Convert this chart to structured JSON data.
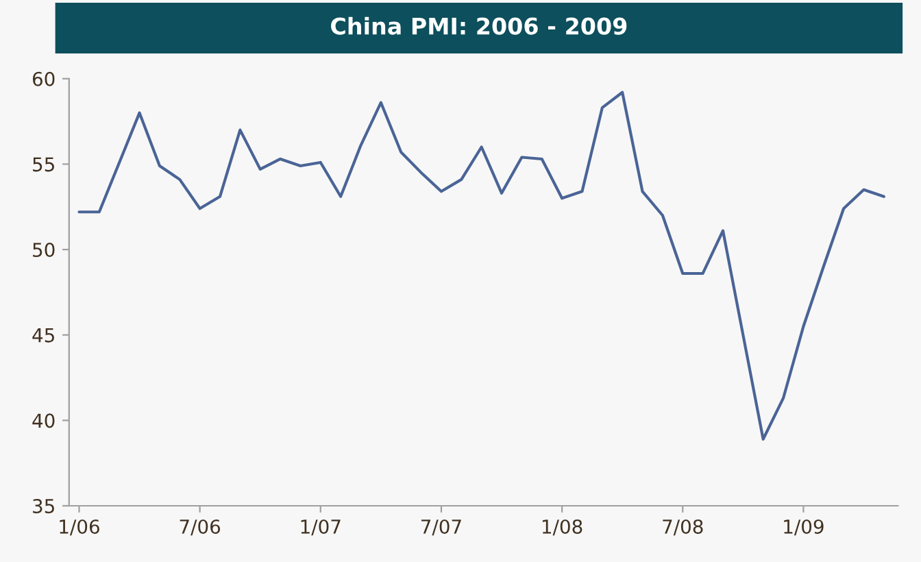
{
  "chart_data": {
    "type": "line",
    "title": "China PMI: 2006 - 2009",
    "categories": [
      "1/06",
      null,
      null,
      null,
      null,
      null,
      "7/06",
      null,
      null,
      null,
      null,
      null,
      "1/07",
      null,
      null,
      null,
      null,
      null,
      "7/07",
      null,
      null,
      null,
      null,
      null,
      "1/08",
      null,
      null,
      null,
      null,
      null,
      "7/08",
      null,
      null,
      null,
      null,
      null,
      "1/09",
      null,
      null,
      null,
      null
    ],
    "series": [
      {
        "color": "#4a6496",
        "values": [
          52.2,
          52.2,
          55.1,
          58.0,
          54.9,
          54.1,
          52.4,
          53.1,
          57.0,
          54.7,
          55.3,
          54.9,
          55.1,
          53.1,
          56.1,
          58.6,
          55.7,
          54.5,
          53.4,
          54.1,
          56.0,
          53.3,
          55.4,
          55.3,
          53.0,
          53.4,
          58.3,
          59.2,
          53.4,
          52.0,
          48.6,
          48.6,
          51.1,
          45.0,
          38.9,
          41.3,
          45.5,
          49.0,
          52.4,
          53.5,
          53.1
        ]
      }
    ],
    "ylim": [
      35,
      60
    ],
    "yticks": [
      35,
      40,
      45,
      50,
      55,
      60
    ],
    "grid": false,
    "legend": false,
    "marker": "none",
    "line_style": "solid"
  }
}
